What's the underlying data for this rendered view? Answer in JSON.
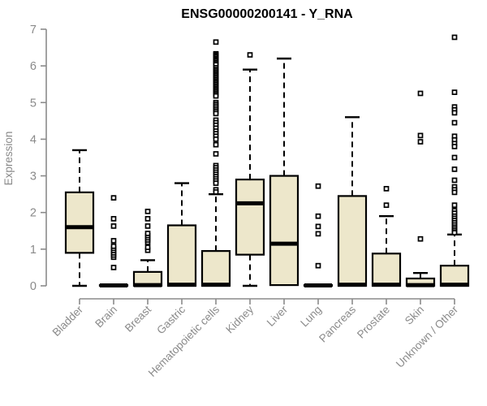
{
  "chart_data": {
    "type": "boxplot",
    "title": "ENSG00000200141 - Y_RNA",
    "ylabel": "Expression",
    "xlabel": "",
    "ylim": [
      0,
      7
    ],
    "yticks": [
      0,
      1,
      2,
      3,
      4,
      5,
      6,
      7
    ],
    "grid": false,
    "legend": "none",
    "colors": {
      "box_fill": "#EDE7CB",
      "box_border": "#000000",
      "median": "#000000",
      "axis": "#8a8a8a",
      "title": "#000000"
    },
    "categories": [
      "Bladder",
      "Brain",
      "Breast",
      "Gastric",
      "Hematopoietic cells",
      "Kidney",
      "Liver",
      "Lung",
      "Pancreas",
      "Prostate",
      "Skin",
      "Unknown / Other"
    ],
    "boxes": [
      {
        "category": "Bladder",
        "low": 0,
        "q1": 0.9,
        "median": 1.6,
        "q3": 2.55,
        "high": 3.7,
        "outliers": []
      },
      {
        "category": "Brain",
        "low": 0,
        "q1": 0,
        "median": 0.01,
        "q3": 0.02,
        "high": 0.02,
        "outliers": [
          0.5,
          0.78,
          0.84,
          0.9,
          0.96,
          1.02,
          1.08,
          1.23,
          1.63,
          1.83,
          2.4
        ]
      },
      {
        "category": "Breast",
        "low": 0,
        "q1": 0,
        "median": 0.02,
        "q3": 0.38,
        "high": 0.7,
        "outliers": [
          0.97,
          1.05,
          1.19,
          1.25,
          1.31,
          1.37,
          1.43,
          1.63,
          1.83,
          2.03
        ]
      },
      {
        "category": "Gastric",
        "low": 0,
        "q1": 0,
        "median": 0.03,
        "q3": 1.65,
        "high": 2.8,
        "outliers": []
      },
      {
        "category": "Hematopoietic cells",
        "low": 0,
        "q1": 0,
        "median": 0.03,
        "q3": 0.95,
        "high": 2.5,
        "outliers": [
          6.65,
          6.33,
          6.3,
          6.27,
          6.24,
          6.2,
          6.17,
          6.14,
          6.1,
          6.07,
          6.03,
          5.95,
          5.9,
          5.86,
          5.82,
          5.78,
          5.74,
          5.7,
          5.66,
          5.62,
          5.58,
          5.54,
          5.5,
          5.46,
          5.42,
          5.38,
          5.34,
          5.3,
          5.26,
          5.22,
          5.18,
          5.0,
          4.95,
          4.9,
          4.85,
          4.8,
          4.75,
          4.7,
          4.52,
          4.45,
          4.38,
          4.3,
          4.22,
          4.15,
          4.08,
          4.0,
          3.85,
          3.6,
          3.28,
          3.22,
          3.16,
          3.1,
          3.04,
          2.98,
          2.92,
          2.86,
          2.8,
          2.62,
          2.56
        ]
      },
      {
        "category": "Kidney",
        "low": 0,
        "q1": 0.85,
        "median": 2.25,
        "q3": 2.9,
        "high": 5.9,
        "outliers": [
          6.3
        ]
      },
      {
        "category": "Liver",
        "low": 0,
        "q1": 0.02,
        "median": 1.15,
        "q3": 3.0,
        "high": 6.2,
        "outliers": []
      },
      {
        "category": "Lung",
        "low": 0,
        "q1": 0,
        "median": 0.01,
        "q3": 0.02,
        "high": 0.02,
        "outliers": [
          0.55,
          1.42,
          1.62,
          1.9,
          2.72
        ]
      },
      {
        "category": "Pancreas",
        "low": 0,
        "q1": 0,
        "median": 0.03,
        "q3": 2.45,
        "high": 4.6,
        "outliers": []
      },
      {
        "category": "Prostate",
        "low": 0,
        "q1": 0,
        "median": 0.03,
        "q3": 0.88,
        "high": 1.9,
        "outliers": [
          2.2,
          2.65
        ]
      },
      {
        "category": "Skin",
        "low": 0,
        "q1": 0,
        "median": 0.02,
        "q3": 0.2,
        "high": 0.35,
        "outliers": [
          1.28,
          3.93,
          4.1,
          5.25
        ]
      },
      {
        "category": "Unknown / Other",
        "low": 0,
        "q1": 0,
        "median": 0.03,
        "q3": 0.55,
        "high": 1.4,
        "outliers": [
          6.78,
          5.28,
          4.88,
          4.8,
          4.72,
          4.45,
          4.08,
          3.98,
          3.88,
          3.8,
          3.5,
          3.18,
          2.88,
          2.7,
          2.62,
          2.55,
          2.2,
          2.05,
          1.98,
          1.9,
          1.84,
          1.78,
          1.72,
          1.66,
          1.6,
          1.55,
          1.5,
          1.45
        ]
      }
    ]
  }
}
